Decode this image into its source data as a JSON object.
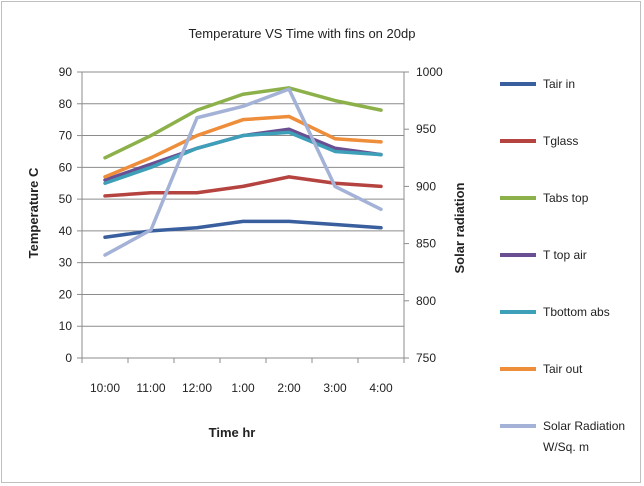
{
  "chart_data": {
    "type": "line",
    "title": "Temperature VS Time with fins on 20dp",
    "xlabel": "Time hr",
    "ylabel": "Temperature C",
    "y2label": "Solar radiation",
    "categories": [
      "10:00",
      "11:00",
      "12:00",
      "1:00",
      "2:00",
      "3:00",
      "4:00"
    ],
    "ylim": [
      0,
      90
    ],
    "yticks": [
      "0",
      "10",
      "20",
      "30",
      "40",
      "50",
      "60",
      "70",
      "80",
      "90"
    ],
    "y2lim": [
      750,
      1000
    ],
    "y2ticks": [
      "750",
      "800",
      "850",
      "900",
      "950",
      "1000"
    ],
    "grid": true,
    "legend_position": "right",
    "series": [
      {
        "name": "Tair in",
        "color": "#3a5f9e",
        "axis": "left",
        "values": [
          38,
          40,
          41,
          43,
          43,
          42,
          41
        ]
      },
      {
        "name": "Tglass",
        "color": "#b5433f",
        "axis": "left",
        "values": [
          51,
          52,
          52,
          54,
          57,
          55,
          54
        ]
      },
      {
        "name": "Tabs top",
        "color": "#8db14a",
        "axis": "left",
        "values": [
          63,
          70,
          78,
          83,
          85,
          81,
          78
        ]
      },
      {
        "name": "T top air",
        "color": "#6a4f92",
        "axis": "left",
        "values": [
          56,
          61,
          66,
          70,
          72,
          66,
          64
        ]
      },
      {
        "name": "Tbottom abs",
        "color": "#3ea0b8",
        "axis": "left",
        "values": [
          55,
          60,
          66,
          70,
          71,
          65,
          64
        ]
      },
      {
        "name": "Tair out",
        "color": "#ee8d3a",
        "axis": "left",
        "values": [
          57,
          63,
          70,
          75,
          76,
          69,
          68
        ]
      },
      {
        "name": "Solar Radiation W/Sq. m",
        "legend_lines": [
          "Solar Radiation",
          "W/Sq. m"
        ],
        "color": "#a3b2d6",
        "axis": "right",
        "values": [
          840,
          862,
          960,
          970,
          985,
          900,
          880
        ]
      }
    ]
  }
}
